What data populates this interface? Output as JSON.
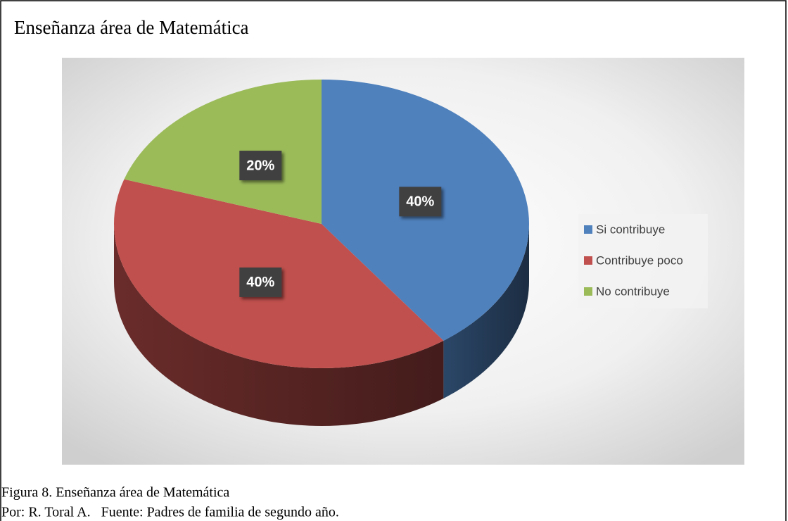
{
  "chart_data": {
    "type": "pie",
    "title": "Enseñanza área de Matemática",
    "categories": [
      "Si contribuye",
      "Contribuye poco",
      "No contribuye"
    ],
    "values": [
      40,
      40,
      20
    ],
    "value_labels": [
      "40%",
      "40%",
      "20%"
    ],
    "colors": [
      "#4f81bd",
      "#c0504d",
      "#9bbb59"
    ],
    "legend": "right",
    "caption": [
      "Figura 8. Enseñanza área de Matemática",
      "Por: R. Toral A.   Fuente: Padres de familia de segundo año."
    ]
  }
}
